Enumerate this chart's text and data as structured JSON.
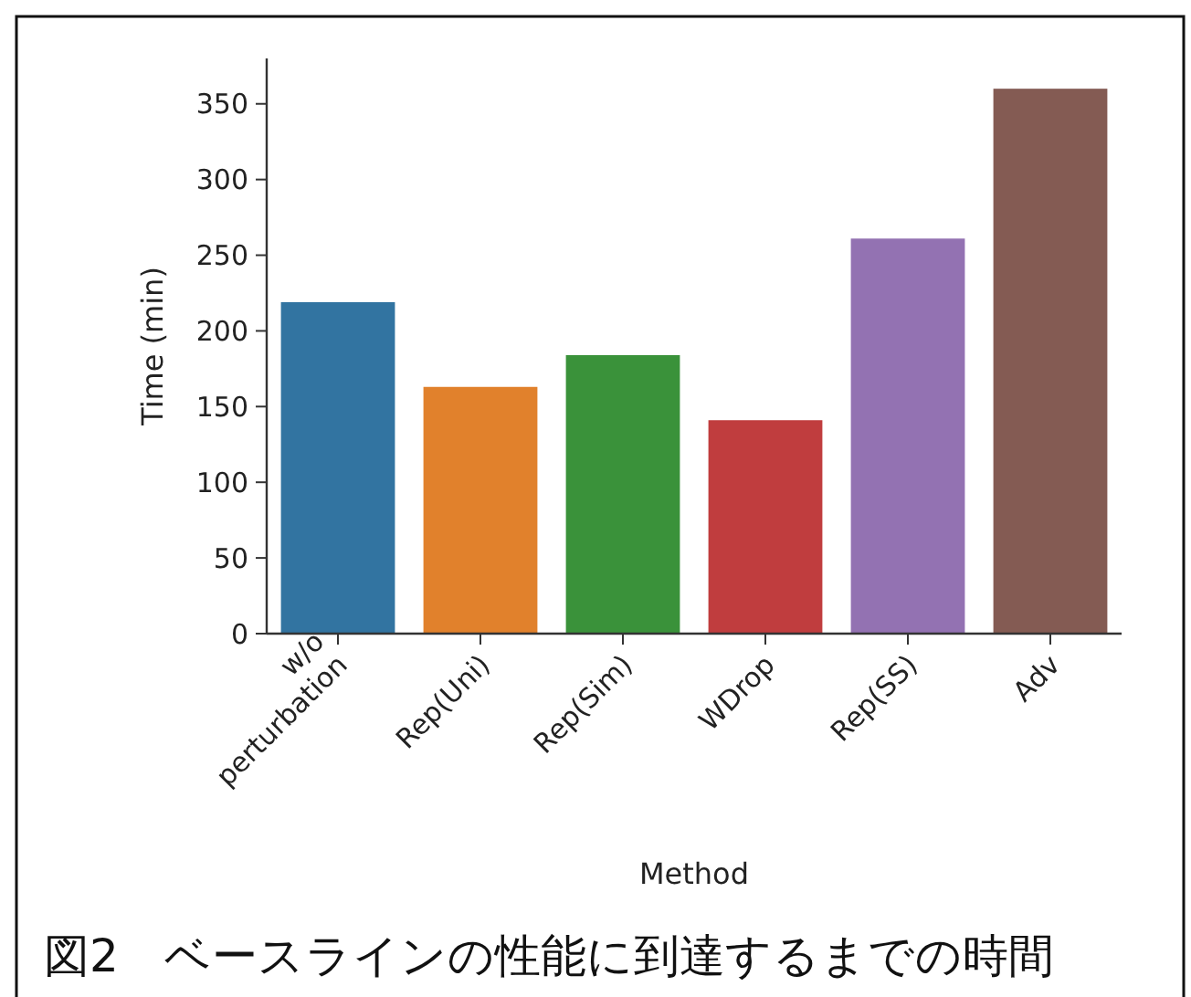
{
  "chart_data": {
    "type": "bar",
    "xlabel": "Method",
    "ylabel": "Time (min)",
    "categories": [
      "w/o perturbation",
      "Rep(Uni)",
      "Rep(Sim)",
      "WDrop",
      "Rep(SS)",
      "Adv"
    ],
    "values": [
      219,
      163,
      184,
      141,
      261,
      360
    ],
    "colors": [
      "#3274a1",
      "#e1812c",
      "#3a923a",
      "#c03d3e",
      "#9372b2",
      "#845b53"
    ],
    "ylim": [
      0,
      380
    ],
    "yticks": [
      0,
      50,
      100,
      150,
      200,
      250,
      300,
      350
    ],
    "grid": false,
    "annotations": [
      "図2　ベースラインの性能に到達するまでの時間"
    ]
  }
}
